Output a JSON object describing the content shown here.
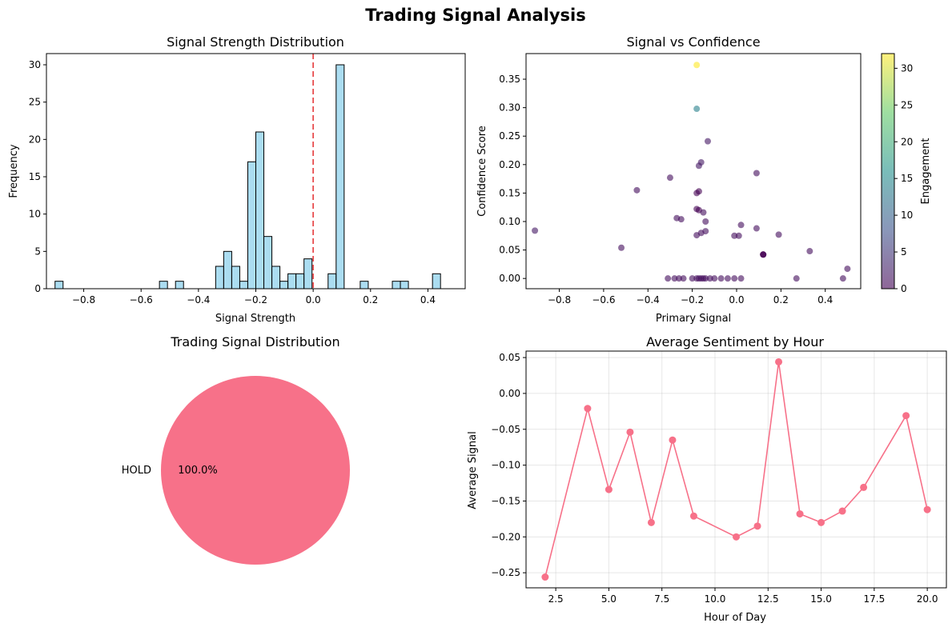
{
  "figure": {
    "title": "Trading Signal Analysis"
  },
  "chart_data": [
    {
      "type": "histogram",
      "title": "Signal Strength Distribution",
      "xlabel": "Signal Strength",
      "ylabel": "Frequency",
      "xlim": [
        -0.93,
        0.53
      ],
      "ylim": [
        0,
        31.5
      ],
      "xticks": [
        -0.8,
        -0.6,
        -0.4,
        -0.2,
        0.0,
        0.2,
        0.4
      ],
      "xtick_labels": [
        "−0.8",
        "−0.6",
        "−0.4",
        "−0.2",
        "0.0",
        "0.2",
        "0.4"
      ],
      "yticks": [
        0,
        5,
        10,
        15,
        20,
        25,
        30
      ],
      "bin_start": -0.9,
      "bin_width": 0.028,
      "counts": [
        1,
        0,
        0,
        0,
        0,
        0,
        0,
        0,
        0,
        0,
        0,
        0,
        0,
        1,
        0,
        1,
        0,
        0,
        0,
        0,
        3,
        5,
        3,
        1,
        17,
        21,
        7,
        3,
        1,
        2,
        2,
        4,
        0,
        0,
        2,
        30,
        0,
        0,
        1,
        0,
        0,
        0,
        1,
        1,
        0,
        0,
        0,
        2
      ],
      "fill_color": "#87ceeb",
      "edge_color": "#000000",
      "vline": {
        "x": 0.0,
        "color": "#e5383b",
        "style": "dashed"
      },
      "grid": false
    },
    {
      "type": "scatter",
      "title": "Signal vs Confidence",
      "xlabel": "Primary Signal",
      "ylabel": "Confidence Score",
      "xlim": [
        -0.95,
        0.56
      ],
      "ylim": [
        -0.018,
        0.395
      ],
      "xticks": [
        -0.8,
        -0.6,
        -0.4,
        -0.2,
        0.0,
        0.2,
        0.4
      ],
      "xtick_labels": [
        "−0.8",
        "−0.6",
        "−0.4",
        "−0.2",
        "0.0",
        "0.2",
        "0.4"
      ],
      "yticks": [
        0.0,
        0.05,
        0.1,
        0.15,
        0.2,
        0.25,
        0.3,
        0.35
      ],
      "ytick_labels": [
        "0.00",
        "0.05",
        "0.10",
        "0.15",
        "0.20",
        "0.25",
        "0.30",
        "0.35"
      ],
      "colorbar": {
        "label": "Engagement",
        "range": [
          0,
          32
        ],
        "ticks": [
          0,
          5,
          10,
          15,
          20,
          25,
          30
        ],
        "colormap": "viridis"
      },
      "points": [
        {
          "x": -0.18,
          "y": 0.375,
          "c": 32
        },
        {
          "x": -0.18,
          "y": 0.298,
          "c": 14
        },
        {
          "x": -0.13,
          "y": 0.241,
          "c": 2
        },
        {
          "x": -0.16,
          "y": 0.204,
          "c": 2
        },
        {
          "x": -0.17,
          "y": 0.198,
          "c": 2
        },
        {
          "x": 0.09,
          "y": 0.185,
          "c": 1
        },
        {
          "x": -0.3,
          "y": 0.177,
          "c": 1
        },
        {
          "x": -0.45,
          "y": 0.155,
          "c": 1
        },
        {
          "x": -0.17,
          "y": 0.153,
          "c": 0
        },
        {
          "x": -0.18,
          "y": 0.15,
          "c": 0
        },
        {
          "x": -0.18,
          "y": 0.122,
          "c": 0
        },
        {
          "x": -0.17,
          "y": 0.12,
          "c": 0
        },
        {
          "x": -0.15,
          "y": 0.116,
          "c": 1
        },
        {
          "x": -0.27,
          "y": 0.106,
          "c": 1
        },
        {
          "x": -0.25,
          "y": 0.104,
          "c": 1
        },
        {
          "x": -0.14,
          "y": 0.1,
          "c": 1
        },
        {
          "x": 0.02,
          "y": 0.094,
          "c": 1
        },
        {
          "x": -0.91,
          "y": 0.084,
          "c": 2
        },
        {
          "x": 0.09,
          "y": 0.088,
          "c": 1
        },
        {
          "x": -0.14,
          "y": 0.083,
          "c": 1
        },
        {
          "x": -0.16,
          "y": 0.08,
          "c": 1
        },
        {
          "x": -0.18,
          "y": 0.076,
          "c": 1
        },
        {
          "x": 0.19,
          "y": 0.077,
          "c": 1
        },
        {
          "x": -0.01,
          "y": 0.075,
          "c": 1
        },
        {
          "x": 0.01,
          "y": 0.075,
          "c": 1
        },
        {
          "x": -0.52,
          "y": 0.054,
          "c": 1
        },
        {
          "x": 0.33,
          "y": 0.048,
          "c": 1
        },
        {
          "x": 0.12,
          "y": 0.042,
          "c": 0
        },
        {
          "x": 0.12,
          "y": 0.042,
          "c": 0
        },
        {
          "x": 0.12,
          "y": 0.042,
          "c": 0
        },
        {
          "x": 0.5,
          "y": 0.017,
          "c": 1
        },
        {
          "x": -0.31,
          "y": 0.0,
          "c": 1
        },
        {
          "x": -0.28,
          "y": 0.0,
          "c": 1
        },
        {
          "x": -0.26,
          "y": 0.0,
          "c": 1
        },
        {
          "x": -0.24,
          "y": 0.0,
          "c": 1
        },
        {
          "x": -0.2,
          "y": 0.0,
          "c": 1
        },
        {
          "x": -0.18,
          "y": 0.0,
          "c": 1
        },
        {
          "x": -0.17,
          "y": 0.0,
          "c": 1
        },
        {
          "x": -0.16,
          "y": 0.0,
          "c": 1
        },
        {
          "x": -0.15,
          "y": 0.0,
          "c": 1
        },
        {
          "x": -0.14,
          "y": 0.0,
          "c": 1
        },
        {
          "x": -0.12,
          "y": 0.0,
          "c": 1
        },
        {
          "x": -0.1,
          "y": 0.0,
          "c": 1
        },
        {
          "x": -0.07,
          "y": 0.0,
          "c": 1
        },
        {
          "x": -0.04,
          "y": 0.0,
          "c": 1
        },
        {
          "x": -0.01,
          "y": 0.0,
          "c": 1
        },
        {
          "x": 0.02,
          "y": 0.0,
          "c": 1
        },
        {
          "x": 0.27,
          "y": 0.0,
          "c": 1
        },
        {
          "x": 0.48,
          "y": 0.0,
          "c": 1
        }
      ],
      "grid": false
    },
    {
      "type": "pie",
      "title": "Trading Signal Distribution",
      "labels": [
        "HOLD"
      ],
      "values": [
        100.0
      ],
      "pct_labels": [
        "100.0%"
      ],
      "colors": [
        "#f77189"
      ]
    },
    {
      "type": "line",
      "title": "Average Sentiment by Hour",
      "xlabel": "Hour of Day",
      "ylabel": "Average Signal",
      "xlim": [
        1.1,
        20.9
      ],
      "ylim": [
        -0.271,
        0.059
      ],
      "xticks": [
        2.5,
        5.0,
        7.5,
        10.0,
        12.5,
        15.0,
        17.5,
        20.0
      ],
      "xtick_labels": [
        "2.5",
        "5.0",
        "7.5",
        "10.0",
        "12.5",
        "15.0",
        "17.5",
        "20.0"
      ],
      "yticks": [
        -0.25,
        -0.2,
        -0.15,
        -0.1,
        -0.05,
        0.0,
        0.05
      ],
      "ytick_labels": [
        "−0.25",
        "−0.20",
        "−0.15",
        "−0.10",
        "−0.05",
        "0.00",
        "0.05"
      ],
      "x": [
        2,
        4,
        5,
        6,
        7,
        8,
        9,
        11,
        12,
        13,
        14,
        15,
        16,
        17,
        19,
        20
      ],
      "y": [
        -0.256,
        -0.021,
        -0.134,
        -0.054,
        -0.18,
        -0.065,
        -0.171,
        -0.2,
        -0.185,
        0.044,
        -0.168,
        -0.18,
        -0.164,
        -0.131,
        -0.031,
        -0.162
      ],
      "color": "#f77189",
      "grid": true
    }
  ]
}
